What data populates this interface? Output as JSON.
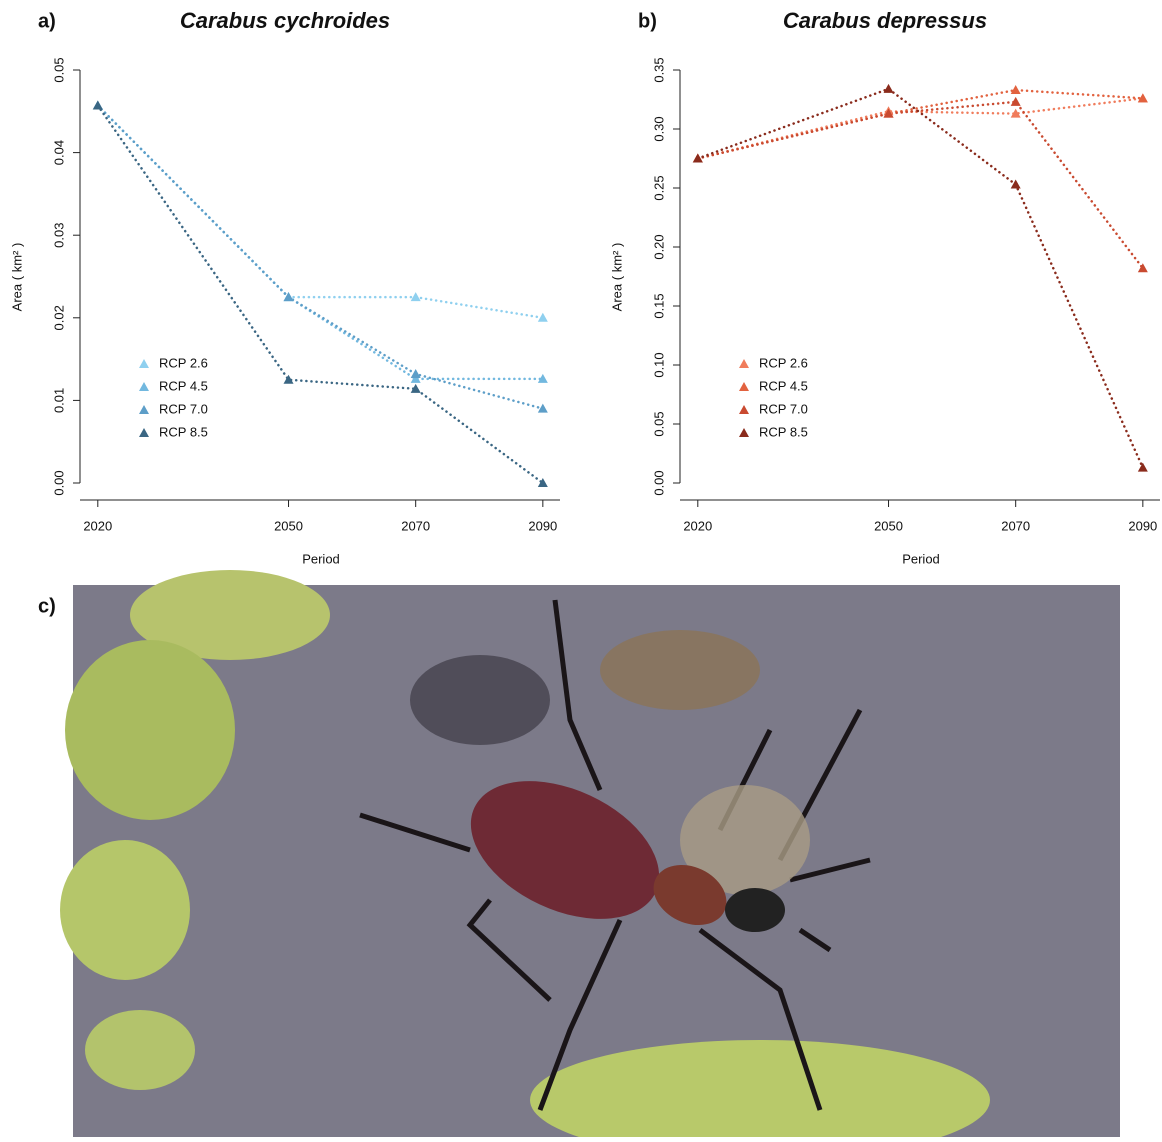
{
  "chart_data": [
    {
      "type": "line",
      "panel_label": "a)",
      "title": "Carabus cychroides",
      "xlabel": "Period",
      "ylabel": "Area ( km² )",
      "x": [
        2020,
        2050,
        2070,
        2090
      ],
      "xlim": [
        2017.2,
        2092.7
      ],
      "xticks": [
        2020,
        2050,
        2070,
        2090
      ],
      "ylim": [
        0,
        0.05
      ],
      "yticks": [
        {
          "value": 0,
          "label": "0.00"
        },
        0.01,
        0.02,
        0.03,
        0.04,
        0.05
      ],
      "legend": "lower left",
      "series": [
        {
          "name": "RCP 2.6",
          "color": "#8fd0ef",
          "values": [
            0.0457,
            0.0225,
            0.0225,
            0.02
          ]
        },
        {
          "name": "RCP 4.5",
          "color": "#72b8df",
          "values": [
            0.0457,
            0.0225,
            0.0126,
            0.0126
          ]
        },
        {
          "name": "RCP 7.0",
          "color": "#5d9ec8",
          "values": [
            0.0457,
            0.0225,
            0.0132,
            0.009
          ]
        },
        {
          "name": "RCP 8.5",
          "color": "#3a6683",
          "values": [
            0.0457,
            0.0125,
            0.0114,
            0
          ]
        }
      ]
    },
    {
      "type": "line",
      "panel_label": "b)",
      "title": "Carabus depressus",
      "xlabel": "Period",
      "ylabel": "Area ( km² )",
      "x": [
        2020,
        2050,
        2070,
        2090
      ],
      "xlim": [
        2017.2,
        2092.7
      ],
      "xticks": [
        2020,
        2050,
        2070,
        2090
      ],
      "ylim": [
        0,
        0.35
      ],
      "yticks": [
        {
          "value": 0,
          "label": "0.00"
        },
        0.05,
        {
          "value": 0.1,
          "label": "0.10"
        },
        0.15,
        {
          "value": 0.2,
          "label": "0.20"
        },
        0.25,
        {
          "value": 0.3,
          "label": "0.30"
        },
        0.35
      ],
      "legend": "lower left",
      "series": [
        {
          "name": "RCP 2.6",
          "color": "#f07c5c",
          "values": [
            0.275,
            0.315,
            0.313,
            0.326
          ]
        },
        {
          "name": "RCP 4.5",
          "color": "#e2623f",
          "values": [
            0.275,
            0.313,
            0.333,
            0.326
          ]
        },
        {
          "name": "RCP 7.0",
          "color": "#c94a30",
          "values": [
            0.275,
            0.313,
            0.323,
            0.182
          ]
        },
        {
          "name": "RCP 8.5",
          "color": "#8a2b1c",
          "values": [
            0.275,
            0.334,
            0.253,
            0.013
          ]
        }
      ]
    }
  ],
  "photo": {
    "panel_label": "c)"
  }
}
